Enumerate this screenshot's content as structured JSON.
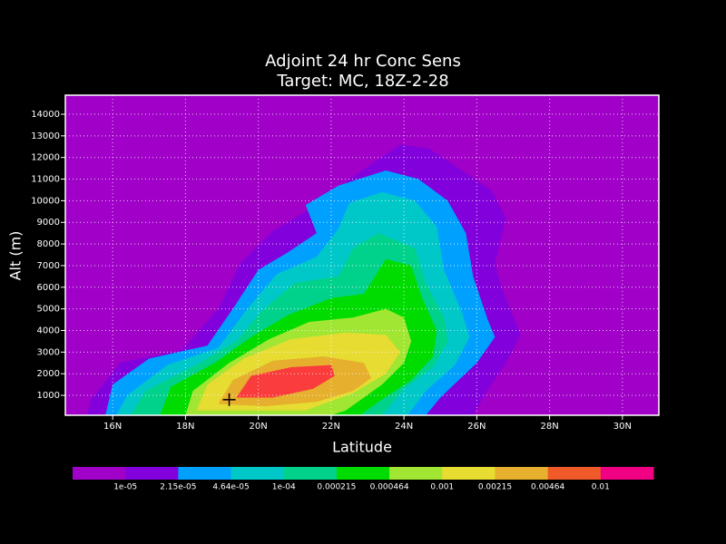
{
  "chart_data": {
    "type": "contour",
    "title": [
      "Adjoint 24 hr Conc Sens",
      "Target: MC, 18Z-2-28"
    ],
    "xlabel": "Latitude",
    "ylabel": "Alt (m)",
    "xlim": [
      14.7,
      31.0
    ],
    "ylim": [
      80,
      14880
    ],
    "xticks": [
      {
        "value": 16,
        "label": "16N"
      },
      {
        "value": 18,
        "label": "18N"
      },
      {
        "value": 20,
        "label": "20N"
      },
      {
        "value": 22,
        "label": "22N"
      },
      {
        "value": 24,
        "label": "24N"
      },
      {
        "value": 26,
        "label": "26N"
      },
      {
        "value": 28,
        "label": "28N"
      },
      {
        "value": 30,
        "label": "30N"
      }
    ],
    "yticks": [
      1000,
      2000,
      3000,
      4000,
      5000,
      6000,
      7000,
      8000,
      9000,
      10000,
      11000,
      12000,
      13000,
      14000
    ],
    "grid": true,
    "colorbar": {
      "colors": [
        "#a000c8",
        "#8200dc",
        "#00a0ff",
        "#00c8c8",
        "#00d28c",
        "#00dc00",
        "#a0e632",
        "#e6dc32",
        "#e6af2d",
        "#f05a28",
        "#f00082"
      ],
      "levels": [
        {
          "value": 1e-05,
          "label": "1e-05"
        },
        {
          "value": 2.15e-05,
          "label": "2.15e-05"
        },
        {
          "value": 4.64e-05,
          "label": "4.64e-05"
        },
        {
          "value": 0.0001,
          "label": "1e-04"
        },
        0.000215,
        0.000464,
        0.001,
        0.00215,
        0.00464,
        0.01
      ]
    },
    "contours": [
      {
        "color": "#8200dc",
        "lat": [
          15.3,
          15.4,
          16.2,
          17.9,
          18.9,
          19.5,
          20.4,
          21.4,
          22.6,
          23.9,
          24.7,
          25.5,
          26.4,
          26.8,
          26.5,
          26.7,
          27.2,
          26.8,
          26.2,
          25.9
        ],
        "alt": [
          80,
          800,
          2500,
          3100,
          5000,
          7100,
          8600,
          9600,
          11100,
          12600,
          12400,
          11500,
          10500,
          9200,
          7100,
          5900,
          3800,
          2500,
          1000,
          80
        ]
      },
      {
        "color": "#00a0ff",
        "lat": [
          15.8,
          16.0,
          17.0,
          18.6,
          19.3,
          20.0,
          20.8,
          21.6,
          21.3,
          22.2,
          23.5,
          24.4,
          25.2,
          25.7,
          25.9,
          26.3,
          26.5,
          26.0,
          25.0,
          24.6
        ],
        "alt": [
          80,
          1500,
          2700,
          3300,
          5000,
          6800,
          7600,
          8500,
          9800,
          10700,
          11400,
          11000,
          10000,
          8500,
          6500,
          4500,
          3700,
          2500,
          900,
          80
        ]
      },
      {
        "color": "#00c8c8",
        "lat": [
          16.1,
          16.4,
          17.5,
          18.9,
          19.7,
          20.5,
          21.6,
          22.2,
          22.5,
          23.4,
          24.3,
          24.9,
          25.1,
          25.6,
          25.8,
          25.4,
          24.6,
          24.1
        ],
        "alt": [
          80,
          1000,
          2400,
          3200,
          5000,
          6600,
          7400,
          8700,
          9900,
          10400,
          10000,
          8800,
          6800,
          4800,
          3700,
          2400,
          1200,
          80
        ]
      },
      {
        "color": "#00d28c",
        "lat": [
          16.5,
          16.9,
          18.4,
          19.4,
          20.1,
          21.0,
          22.2,
          22.6,
          23.3,
          24.3,
          24.6,
          25.1,
          25.2,
          24.8,
          24.0,
          23.4
        ],
        "alt": [
          80,
          1200,
          2500,
          3500,
          4900,
          6200,
          6500,
          7800,
          8500,
          7800,
          6200,
          4600,
          3500,
          2300,
          1300,
          80
        ]
      },
      {
        "color": "#00dc00",
        "lat": [
          17.3,
          17.6,
          18.8,
          19.8,
          20.8,
          22.0,
          22.9,
          23.5,
          24.2,
          24.5,
          24.9,
          24.8,
          24.2,
          23.3,
          22.8
        ],
        "alt": [
          80,
          1400,
          2500,
          3700,
          4700,
          5500,
          5700,
          7300,
          7000,
          5500,
          4000,
          2800,
          1700,
          700,
          80
        ]
      },
      {
        "color": "#a0e632",
        "lat": [
          18.0,
          18.2,
          19.2,
          20.3,
          21.4,
          22.6,
          23.5,
          24.0,
          24.2,
          24.0,
          23.4,
          22.4,
          22.0
        ],
        "alt": [
          80,
          1200,
          2500,
          3600,
          4400,
          4600,
          5000,
          4600,
          3500,
          2500,
          1500,
          300,
          80
        ]
      },
      {
        "color": "#e6dc32",
        "lat": [
          18.3,
          18.6,
          19.6,
          20.9,
          22.4,
          23.5,
          23.9,
          23.5,
          22.6,
          21.3
        ],
        "alt": [
          300,
          1500,
          2700,
          3600,
          3900,
          3800,
          3000,
          2000,
          1100,
          300
        ]
      },
      {
        "color": "#e6af2d",
        "lat": [
          18.9,
          19.3,
          20.4,
          21.8,
          22.9,
          23.1,
          22.6,
          21.6,
          20.2
        ],
        "alt": [
          600,
          1700,
          2600,
          2800,
          2500,
          1800,
          1200,
          700,
          500
        ]
      },
      {
        "color": "#fa3c3c",
        "lat": [
          19.4,
          19.8,
          20.9,
          22.0,
          22.1,
          21.5,
          20.4
        ],
        "alt": [
          900,
          1900,
          2300,
          2400,
          1900,
          1300,
          900
        ]
      }
    ],
    "marker": {
      "lat": 19.2,
      "alt": 800
    }
  }
}
